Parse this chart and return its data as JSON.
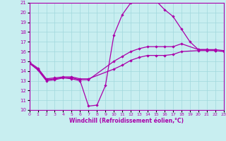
{
  "xlabel": "Windchill (Refroidissement éolien,°C)",
  "xlim": [
    0,
    23
  ],
  "ylim": [
    10,
    21
  ],
  "xticks": [
    0,
    1,
    2,
    3,
    4,
    5,
    6,
    7,
    8,
    9,
    10,
    11,
    12,
    13,
    14,
    15,
    16,
    17,
    18,
    19,
    20,
    21,
    22,
    23
  ],
  "yticks": [
    10,
    11,
    12,
    13,
    14,
    15,
    16,
    17,
    18,
    19,
    20,
    21
  ],
  "bg_color": "#c8eef0",
  "grid_color": "#a0d8dc",
  "line_color": "#aa00aa",
  "line1_x": [
    0,
    1,
    2,
    3,
    4,
    5,
    6,
    7,
    8,
    9,
    10,
    11,
    12,
    13,
    14,
    15,
    16,
    17,
    18,
    19,
    20,
    21,
    22
  ],
  "line1_y": [
    14.8,
    14.1,
    13.0,
    13.1,
    13.3,
    13.2,
    13.0,
    10.4,
    10.5,
    12.5,
    17.7,
    19.8,
    21.0,
    21.3,
    21.3,
    21.2,
    20.3,
    19.6,
    18.3,
    17.0,
    16.2,
    16.2,
    16.1
  ],
  "line2_x": [
    0,
    1,
    2,
    3,
    4,
    5,
    6,
    7,
    10,
    11,
    12,
    13,
    14,
    15,
    16,
    17,
    18,
    20,
    21,
    22,
    23
  ],
  "line2_y": [
    14.8,
    14.2,
    13.1,
    13.2,
    13.3,
    13.3,
    13.1,
    13.1,
    15.0,
    15.5,
    16.0,
    16.3,
    16.5,
    16.5,
    16.5,
    16.5,
    16.8,
    16.2,
    16.2,
    16.2,
    16.1
  ],
  "line3_x": [
    0,
    1,
    2,
    3,
    4,
    5,
    6,
    7,
    10,
    11,
    12,
    13,
    14,
    15,
    16,
    17,
    18,
    20,
    21,
    22,
    23
  ],
  "line3_y": [
    14.9,
    14.3,
    13.2,
    13.3,
    13.4,
    13.4,
    13.2,
    13.2,
    14.2,
    14.6,
    15.1,
    15.4,
    15.6,
    15.6,
    15.6,
    15.7,
    16.0,
    16.1,
    16.1,
    16.1,
    16.0
  ]
}
